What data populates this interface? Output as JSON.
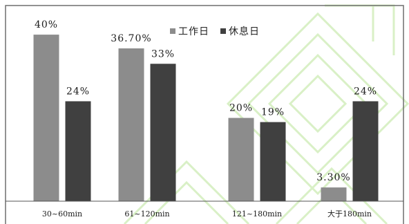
{
  "chart_data": {
    "type": "bar",
    "title": "",
    "xlabel": "",
    "ylabel": "",
    "ylim": [
      0,
      45
    ],
    "grid": false,
    "legend_position": "top-center",
    "categories": [
      "30~60min",
      "61~120min",
      "121~180min",
      "大于180min"
    ],
    "series": [
      {
        "name": "工作日",
        "color": "#8c8c8c",
        "values": [
          40,
          36.7,
          20,
          3.3
        ],
        "labels": [
          "40%",
          "36.70%",
          "20%",
          "3.30%"
        ]
      },
      {
        "name": "休息日",
        "color": "#404040",
        "values": [
          24,
          33,
          19,
          24
        ],
        "labels": [
          "24%",
          "33%",
          "19%",
          "24%"
        ]
      }
    ]
  }
}
